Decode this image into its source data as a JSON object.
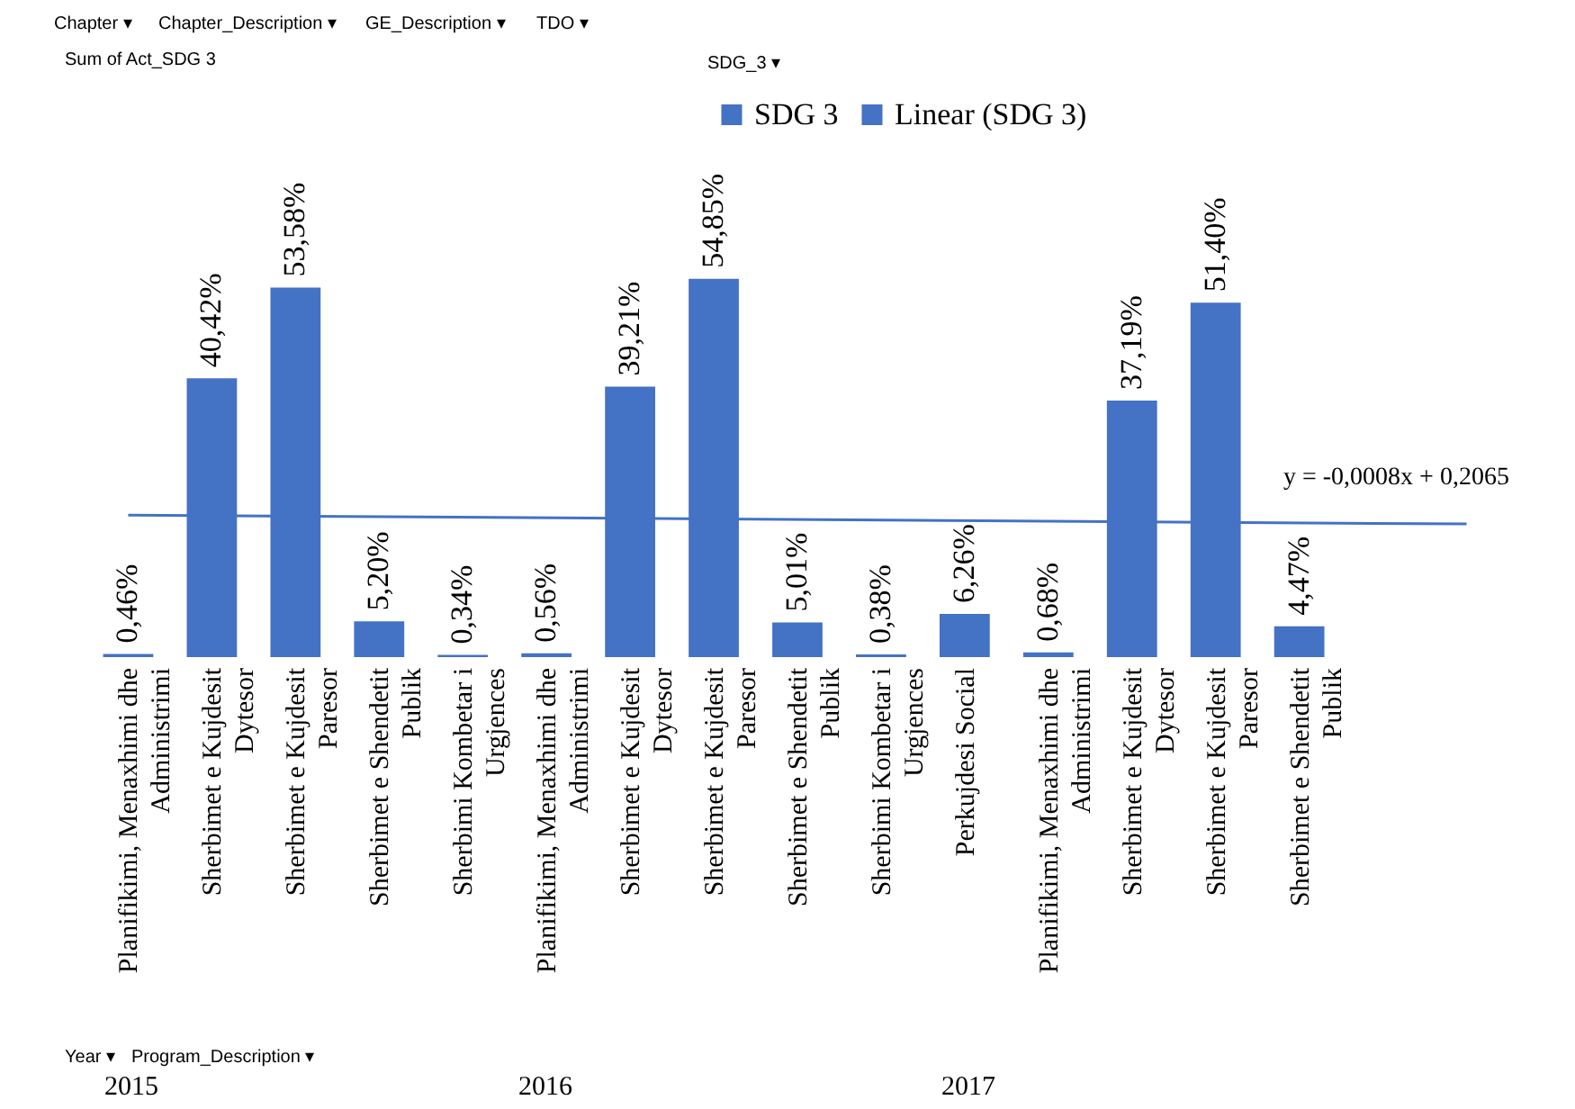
{
  "chart_data": {
    "type": "bar",
    "categories": [
      "Planifikimi, Menaxhimi dhe\nAdministrimi",
      "Sherbimet e Kujdesit\nDytesor",
      "Sherbimet e Kujdesit\nParesor",
      "Sherbimet e Shendetit\nPublik",
      "Sherbimi Kombetar i\nUrgjences",
      "Planifikimi, Menaxhimi dhe\nAdministrimi",
      "Sherbimet e Kujdesit\nDytesor",
      "Sherbimet e Kujdesit\nParesor",
      "Sherbimet e Shendetit\nPublik",
      "Sherbimi Kombetar i\nUrgjences",
      "Perkujdesi Social",
      "Planifikimi, Menaxhimi dhe\nAdministrimi",
      "Sherbimet e Kujdesit\nDytesor",
      "Sherbimet e Kujdesit\nParesor",
      "Sherbimet e Shendetit\nPublik",
      null,
      null
    ],
    "series": [
      {
        "name": "SDG 3",
        "color": "#4472c4",
        "values": [
          0.46,
          40.42,
          53.58,
          5.2,
          0.34,
          0.56,
          39.21,
          54.85,
          5.01,
          0.38,
          6.26,
          0.68,
          37.19,
          51.4,
          4.47,
          null,
          null
        ],
        "value_labels": [
          "0,46%",
          "40,42%",
          "53,58%",
          "5,20%",
          "0,34%",
          "0,56%",
          "39,21%",
          "54,85%",
          "5,01%",
          "0,38%",
          "6,26%",
          "0,68%",
          "37,19%",
          "51,40%",
          "4,47%",
          null,
          null
        ]
      },
      {
        "name": "Linear (SDG 3)",
        "type": "line",
        "color": "#4472c4",
        "values": [
          20.6,
          null,
          null,
          null,
          null,
          null,
          null,
          null,
          null,
          null,
          null,
          null,
          null,
          null,
          null,
          null,
          19.3
        ]
      }
    ],
    "legend": "top",
    "annotations": [
      "y = -0,0008x + 0,2065",
      "2015",
      "2016",
      "2017",
      "Chapter ▾",
      "Chapter_Description ▾",
      "GE_Description ▾",
      "TDO ▾",
      "Sum of Act_SDG 3",
      "SDG_3 ▾",
      "Year ▾",
      "Program_Description ▾"
    ]
  }
}
